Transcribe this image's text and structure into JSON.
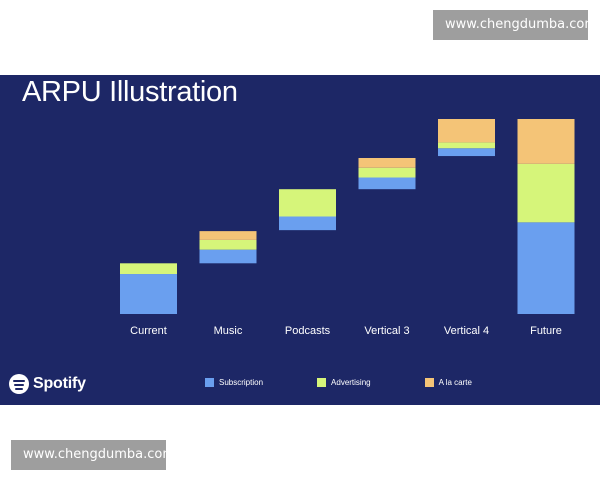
{
  "watermark_top": "www.chengdumba.com",
  "watermark_bottom": "www.chengdumba.com",
  "slide": {
    "title": "ARPU Illustration",
    "brand": "Spotify"
  },
  "chart_data": {
    "type": "bar",
    "subtype": "waterfall-stacked",
    "title": "ARPU Illustration",
    "xlabel": "",
    "ylabel": "",
    "ylim": [
      0,
      100
    ],
    "grid": false,
    "legend_position": "bottom",
    "categories": [
      "Current",
      "Music",
      "Podcasts",
      "Vertical 3",
      "Vertical 4",
      "Future"
    ],
    "base": [
      0,
      26,
      43,
      64,
      81,
      0
    ],
    "series": [
      {
        "name": "Subscription",
        "color": "#6a9fef",
        "values": [
          20.5,
          7,
          7,
          6,
          4,
          47
        ]
      },
      {
        "name": "Advertising",
        "color": "#d6f57a",
        "values": [
          5.5,
          5,
          14,
          5,
          3,
          30
        ]
      },
      {
        "name": "A la carte",
        "color": "#f4c477",
        "values": [
          0,
          4.5,
          0,
          5,
          12,
          23
        ]
      }
    ]
  }
}
